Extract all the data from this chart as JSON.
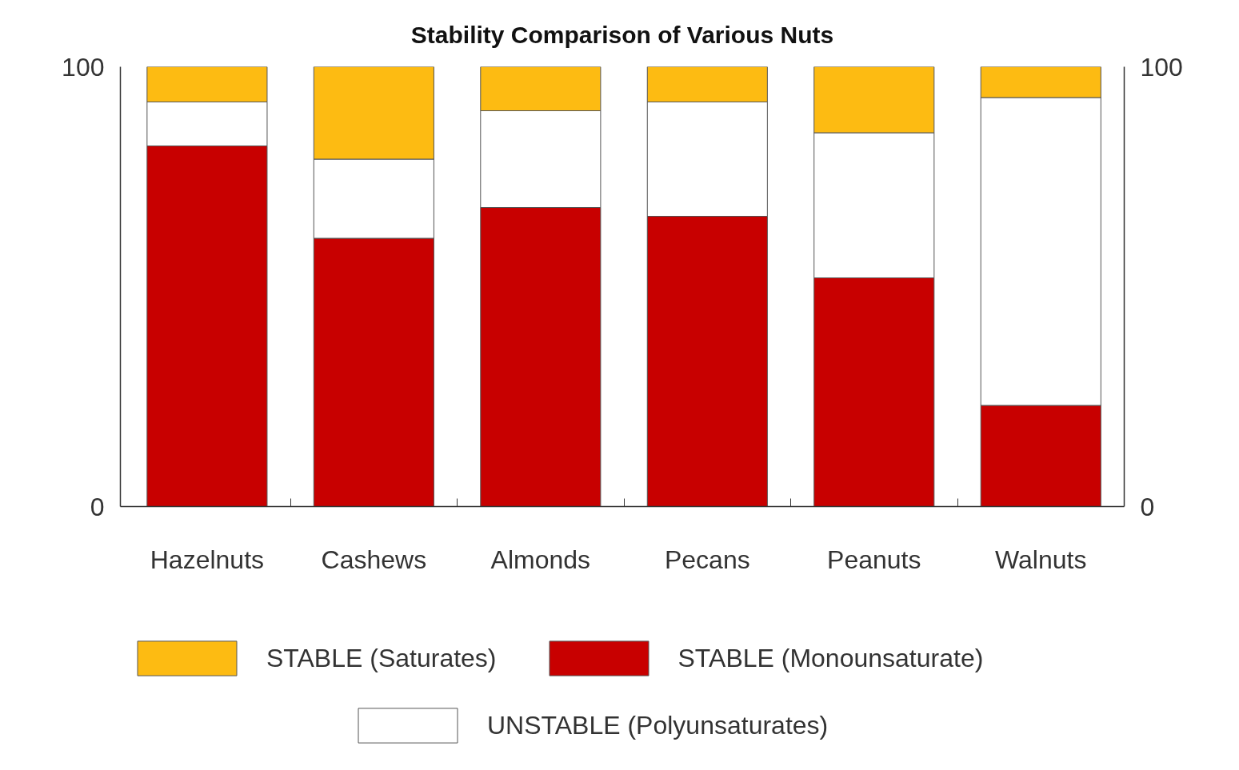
{
  "chart_data": {
    "type": "bar",
    "title": "Stability Comparison of Various Nuts",
    "categories": [
      "Hazelnuts",
      "Cashews",
      "Almonds",
      "Pecans",
      "Peanuts",
      "Walnuts"
    ],
    "stacked": true,
    "series": [
      {
        "name": "STABLE (Monounsaturate)",
        "color": "#c80000",
        "values": [
          82,
          61,
          68,
          66,
          52,
          23
        ]
      },
      {
        "name": "UNSTABLE (Polyunsaturates)",
        "color": "#ffffff",
        "values": [
          10,
          18,
          22,
          26,
          33,
          70
        ]
      },
      {
        "name": "STABLE (Saturates)",
        "color": "#fdbb12",
        "values": [
          8,
          21,
          10,
          8,
          15,
          7
        ]
      }
    ],
    "ylim": [
      0,
      100
    ],
    "yticks": [
      0,
      100
    ],
    "y2lim": [
      0,
      100
    ],
    "y2ticks": [
      0,
      100
    ],
    "legend": "bottom"
  }
}
